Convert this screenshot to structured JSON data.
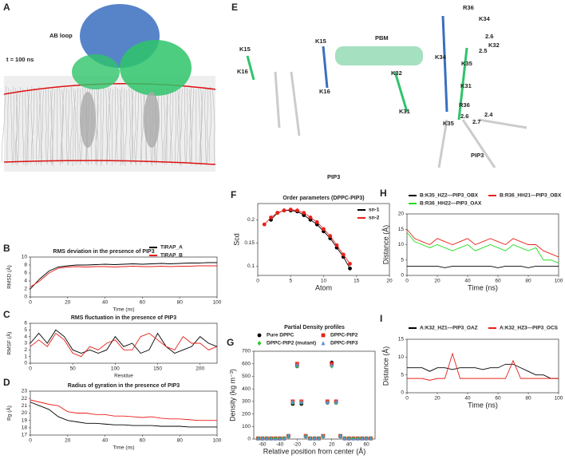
{
  "images": [
    {
      "label": "A",
      "annotations": [
        "AB loop",
        "t = 100 ns"
      ]
    },
    {
      "label": "E",
      "annotations": [
        "K15",
        "K16",
        "K15",
        "K16",
        "PBM",
        "K32",
        "K31",
        "K34",
        "K35",
        "R36",
        "K34",
        "2.6",
        "K32",
        "2.5",
        "K31",
        "R36",
        "2.6",
        "2.4",
        "2.7",
        "K35",
        "PIP3",
        "PIP3"
      ]
    }
  ],
  "chart_data": [
    {
      "type": "line",
      "label": "B",
      "title": "RMS deviation in the presence of PIP3",
      "x_label": "Time (ns)",
      "y_label": "RMSD (Å)",
      "x": [
        0,
        5,
        10,
        15,
        20,
        25,
        30,
        35,
        40,
        45,
        50,
        55,
        60,
        65,
        70,
        75,
        80,
        85,
        90,
        95,
        100
      ],
      "series": [
        {
          "name": "TIRAP_A",
          "color": "#000000",
          "values": [
            2,
            4.5,
            6.5,
            7.5,
            7.8,
            8,
            8,
            8.1,
            8.2,
            8.1,
            8.2,
            8.3,
            8.2,
            8.3,
            8.4,
            8.3,
            8.4,
            8.5,
            8.5,
            8.6,
            8.6
          ]
        },
        {
          "name": "TIRAP_B",
          "color": "#e8201a",
          "values": [
            2.5,
            4,
            6,
            7.2,
            7.5,
            7.6,
            7.5,
            7.6,
            7.6,
            7.5,
            7.6,
            7.7,
            7.6,
            7.6,
            7.7,
            7.6,
            7.7,
            7.7,
            7.8,
            7.8,
            7.8
          ]
        }
      ],
      "xlim": [
        0,
        100
      ],
      "xticks": [
        0,
        20,
        40,
        60,
        80,
        100
      ],
      "ylim": [
        0,
        10
      ],
      "yticks": [
        0,
        2,
        4,
        6,
        8,
        10
      ],
      "legend": "upper right"
    },
    {
      "type": "line",
      "label": "C",
      "title": "RMS fluctuation in the presence of PIP3",
      "x_label": "Residue",
      "y_label": "RMSF (Å)",
      "x": [
        0,
        10,
        20,
        30,
        40,
        50,
        60,
        70,
        80,
        90,
        100,
        110,
        120,
        130,
        140,
        150,
        160,
        170,
        180,
        190,
        200,
        210,
        220
      ],
      "series": [
        {
          "color": "#000000",
          "values": [
            3,
            4.5,
            3,
            5,
            4,
            2,
            1.5,
            2,
            1.5,
            2,
            4,
            2.5,
            3,
            1.5,
            2,
            4.5,
            2.5,
            1.5,
            2,
            2.5,
            4,
            3,
            2.5
          ]
        },
        {
          "color": "#e8201a",
          "values": [
            2.5,
            3.5,
            2.5,
            4.5,
            3.5,
            1.5,
            1,
            2.5,
            2,
            3,
            3.5,
            2,
            2,
            4,
            4.5,
            3.5,
            2.5,
            2,
            4,
            3,
            3,
            2,
            2.5
          ]
        }
      ],
      "xlim": [
        0,
        220
      ],
      "xticks": [
        0,
        50,
        100,
        150,
        200
      ],
      "ylim": [
        0,
        6
      ],
      "yticks": [
        0,
        1,
        2,
        3,
        4,
        5,
        6
      ]
    },
    {
      "type": "line",
      "label": "D",
      "title": "Radius of gyration in the presence of PIP3",
      "x_label": "Time (ns)",
      "y_label": "Rg (Å)",
      "x": [
        0,
        5,
        10,
        15,
        20,
        25,
        30,
        35,
        40,
        45,
        50,
        55,
        60,
        65,
        70,
        75,
        80,
        85,
        90,
        95,
        100
      ],
      "series": [
        {
          "color": "#000000",
          "values": [
            21.5,
            21,
            20.5,
            19.5,
            19,
            18.8,
            18.6,
            18.6,
            18.5,
            18.4,
            18.4,
            18.3,
            18.3,
            18.3,
            18.2,
            18.2,
            18.2,
            18.1,
            18.1,
            18.1,
            18.1
          ]
        },
        {
          "color": "#e8201a",
          "values": [
            21.8,
            21.5,
            21.2,
            21,
            20.2,
            20,
            20,
            19.8,
            19.8,
            19.6,
            19.6,
            19.5,
            19.4,
            19.5,
            19.3,
            19.2,
            19.2,
            19.1,
            19,
            19,
            19
          ]
        }
      ],
      "xlim": [
        0,
        100
      ],
      "xticks": [
        0,
        20,
        40,
        60,
        80,
        100
      ],
      "ylim": [
        17,
        23
      ],
      "yticks": [
        17,
        18,
        19,
        20,
        21,
        22,
        23
      ]
    },
    {
      "type": "line",
      "label": "F",
      "title": "Order parameters (DPPC-PIP3)",
      "x_label": "Atom",
      "y_label": "Scd",
      "markers": true,
      "series": [
        {
          "name": "sn-1",
          "color": "#000000",
          "x": [
            2,
            3,
            4,
            5,
            6,
            7,
            8,
            9,
            10,
            11,
            12,
            13,
            14
          ],
          "values": [
            0.2,
            0.215,
            0.22,
            0.22,
            0.218,
            0.21,
            0.2,
            0.19,
            0.175,
            0.16,
            0.14,
            0.12,
            0.095
          ]
        },
        {
          "name": "sn-2",
          "color": "#e8201a",
          "x": [
            1,
            2,
            3,
            4,
            5,
            6,
            7,
            8,
            9,
            10,
            11,
            12,
            13,
            14
          ],
          "values": [
            0.19,
            0.205,
            0.215,
            0.22,
            0.222,
            0.22,
            0.215,
            0.205,
            0.195,
            0.18,
            0.165,
            0.145,
            0.125,
            0.105
          ]
        }
      ],
      "xlim": [
        0,
        20
      ],
      "xticks": [
        0,
        5,
        10,
        15,
        20
      ],
      "ylim": [
        0.08,
        0.235
      ],
      "yticks": [
        0.1,
        0.15,
        0.2
      ],
      "legend": "upper right"
    },
    {
      "type": "scatter",
      "label": "G",
      "title": "Partial Density profiles",
      "x_label": "Relative position from center (Å)",
      "y_label": "Density (kg m⁻³)",
      "x": [
        -65,
        -60,
        -55,
        -50,
        -45,
        -40,
        -35,
        -30,
        -25,
        -20,
        -15,
        -10,
        -5,
        0,
        5,
        10,
        15,
        20,
        25,
        30,
        35,
        40,
        45,
        50,
        55,
        60,
        65
      ],
      "series": [
        {
          "name": "Pure DPPC",
          "color": "#000000",
          "marker": "circle",
          "values": [
            5,
            5,
            5,
            5,
            5,
            5,
            5,
            20,
            280,
            580,
            280,
            20,
            5,
            5,
            5,
            20,
            290,
            610,
            290,
            20,
            5,
            5,
            5,
            5,
            5,
            5,
            5
          ]
        },
        {
          "name": "DPPC-PIP2",
          "color": "#e8201a",
          "marker": "square",
          "values": [
            5,
            5,
            5,
            5,
            5,
            5,
            5,
            25,
            300,
            600,
            300,
            25,
            5,
            5,
            5,
            25,
            300,
            600,
            300,
            25,
            5,
            5,
            5,
            5,
            5,
            5,
            5
          ]
        },
        {
          "name": "DPPC-PIP2 (mutant)",
          "color": "#22cc22",
          "marker": "diamond",
          "values": [
            5,
            5,
            5,
            5,
            5,
            5,
            5,
            22,
            290,
            580,
            290,
            22,
            5,
            5,
            5,
            22,
            290,
            580,
            290,
            22,
            5,
            5,
            5,
            5,
            5,
            5,
            5
          ]
        },
        {
          "name": "DPPC-PIP3",
          "color": "#5a8fe0",
          "marker": "triangle",
          "values": [
            5,
            5,
            5,
            5,
            5,
            5,
            5,
            24,
            295,
            590,
            295,
            24,
            5,
            5,
            5,
            24,
            295,
            590,
            295,
            24,
            5,
            5,
            5,
            5,
            5,
            5,
            5
          ]
        }
      ],
      "xlim": [
        -70,
        70
      ],
      "xticks": [
        -60,
        -40,
        -20,
        0,
        20,
        40,
        60
      ],
      "ylim": [
        0,
        700
      ],
      "yticks": [
        0,
        100,
        200,
        300,
        400,
        500,
        600,
        700
      ],
      "legend": "upper center"
    },
    {
      "type": "line",
      "label": "H",
      "x_label": "Time (ns)",
      "y_label": "Distance (Å)",
      "x": [
        0,
        5,
        10,
        15,
        20,
        25,
        30,
        35,
        40,
        45,
        50,
        55,
        60,
        65,
        70,
        75,
        80,
        85,
        90,
        95,
        100
      ],
      "series": [
        {
          "name": "B:K35_HZ2—PIP3_OBX",
          "color": "#000000",
          "values": [
            3,
            3,
            3,
            3,
            3,
            2.5,
            3,
            3,
            3,
            3,
            3,
            3,
            2.5,
            3,
            3,
            3,
            2.5,
            3,
            3,
            3,
            3
          ]
        },
        {
          "name": "B:R36_HH21—PIP3_OBX",
          "color": "#e8201a",
          "values": [
            15,
            12,
            11,
            10,
            12,
            11,
            10,
            11,
            12,
            10,
            11,
            12,
            11,
            10,
            12,
            11,
            10,
            10,
            8,
            7,
            6
          ]
        },
        {
          "name": "B:R36_HH22—PIP3_OAX",
          "color": "#22dd22",
          "values": [
            14,
            11,
            10,
            9,
            10,
            9,
            8,
            9,
            10,
            8,
            9,
            10,
            9,
            8,
            10,
            9,
            8,
            9,
            5,
            5,
            4
          ]
        }
      ],
      "xlim": [
        0,
        100
      ],
      "xticks": [
        0,
        20,
        40,
        60,
        80,
        100
      ],
      "ylim": [
        0,
        20
      ],
      "yticks": [
        0,
        5,
        10,
        15,
        20
      ],
      "legend": "upper center"
    },
    {
      "type": "line",
      "label": "I",
      "x_label": "Time (ns)",
      "y_label": "Distance (Å)",
      "x": [
        0,
        5,
        10,
        15,
        20,
        25,
        30,
        35,
        40,
        45,
        50,
        55,
        60,
        65,
        70,
        75,
        80,
        85,
        90,
        95,
        100
      ],
      "series": [
        {
          "name": "A:K32_HZ1—PIP3_OAZ",
          "color": "#000000",
          "values": [
            7,
            7,
            7,
            6,
            7,
            7,
            6.5,
            7,
            7,
            7,
            6.5,
            7,
            7,
            8,
            8,
            7,
            6,
            5,
            5,
            4,
            4
          ]
        },
        {
          "name": "A:K32_HZ3—PIP3_OCS",
          "color": "#e8201a",
          "values": [
            4,
            4,
            4,
            3.5,
            4,
            4,
            11,
            4,
            4,
            4,
            4,
            4,
            4,
            4,
            9,
            4,
            4,
            4,
            4,
            4,
            4
          ]
        }
      ],
      "xlim": [
        0,
        100
      ],
      "xticks": [
        0,
        20,
        40,
        60,
        80,
        100
      ],
      "ylim": [
        0,
        15
      ],
      "yticks": [
        0,
        5,
        10,
        15
      ],
      "legend": "upper center"
    }
  ]
}
